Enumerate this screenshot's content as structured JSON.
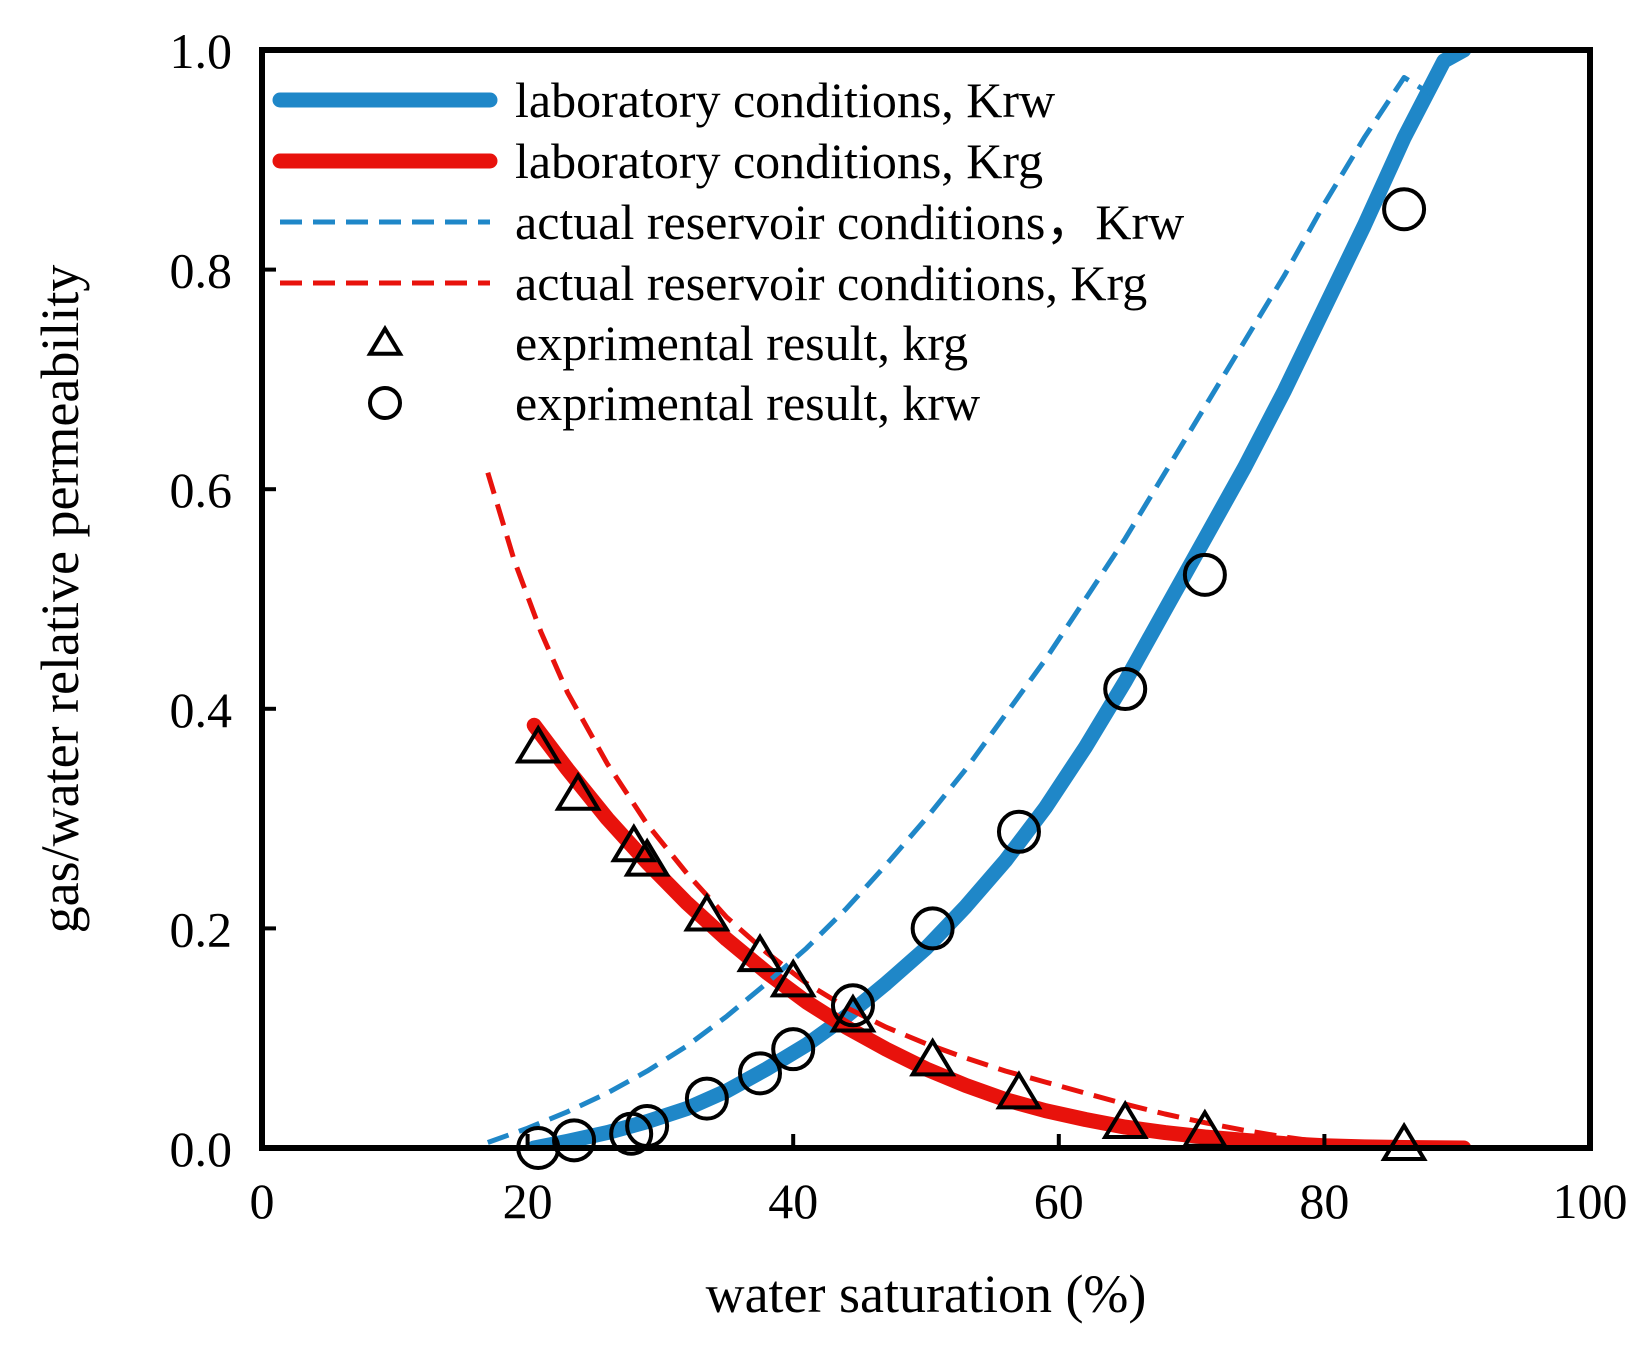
{
  "colors": {
    "blue": "#1f87c8",
    "red": "#e8120c",
    "black": "#000000"
  },
  "chart_data": {
    "type": "line",
    "title": "",
    "xlabel": "water saturation (%)",
    "ylabel": "gas/water relative permeability",
    "xlim": [
      0,
      100
    ],
    "ylim": [
      0,
      1.0
    ],
    "xticks": [
      0,
      20,
      40,
      60,
      80,
      100
    ],
    "yticks": [
      0.0,
      0.2,
      0.4,
      0.6,
      0.8,
      1.0
    ],
    "x_tick_labels": [
      "0",
      "20",
      "40",
      "60",
      "80",
      "100"
    ],
    "y_tick_labels": [
      "0.0",
      "0.2",
      "0.4",
      "0.6",
      "0.8",
      "1.0"
    ],
    "grid": false,
    "legend_position": "top-left",
    "series": [
      {
        "name": "laboratory conditions, Krw",
        "kind": "line",
        "style": "solid",
        "color": "#1f87c8",
        "x": [
          20.5,
          23,
          26,
          29,
          32,
          35,
          38,
          41,
          44,
          47,
          50,
          53,
          56,
          59,
          62,
          65,
          68,
          71,
          74,
          77,
          80,
          83,
          86,
          89,
          90.5
        ],
        "y": [
          0.0,
          0.006,
          0.014,
          0.024,
          0.036,
          0.052,
          0.072,
          0.094,
          0.12,
          0.15,
          0.182,
          0.22,
          0.262,
          0.31,
          0.365,
          0.425,
          0.49,
          0.555,
          0.62,
          0.69,
          0.765,
          0.84,
          0.92,
          0.99,
          1.0
        ]
      },
      {
        "name": "laboratory conditions, Krg",
        "kind": "line",
        "style": "solid",
        "color": "#e8120c",
        "x": [
          20.5,
          23,
          26,
          29,
          32,
          35,
          38,
          41,
          44,
          47,
          50,
          53,
          56,
          59,
          62,
          65,
          68,
          71,
          74,
          77,
          80,
          83,
          86,
          90.5
        ],
        "y": [
          0.385,
          0.345,
          0.3,
          0.26,
          0.223,
          0.19,
          0.16,
          0.133,
          0.11,
          0.09,
          0.072,
          0.057,
          0.044,
          0.034,
          0.026,
          0.019,
          0.014,
          0.01,
          0.007,
          0.004,
          0.002,
          0.001,
          0.0005,
          0.0
        ]
      },
      {
        "name": "actual reservoir conditions，Krw",
        "kind": "line",
        "style": "dashed",
        "color": "#1f87c8",
        "x": [
          17,
          20,
          23,
          26,
          29,
          32,
          35,
          38,
          41,
          44,
          47,
          50,
          53,
          56,
          59,
          62,
          65,
          68,
          71,
          74,
          77,
          80,
          83,
          86,
          88
        ],
        "y": [
          0.005,
          0.018,
          0.033,
          0.05,
          0.07,
          0.093,
          0.12,
          0.15,
          0.182,
          0.218,
          0.258,
          0.3,
          0.345,
          0.395,
          0.445,
          0.5,
          0.555,
          0.615,
          0.675,
          0.735,
          0.795,
          0.86,
          0.92,
          0.975,
          0.96
        ]
      },
      {
        "name": "actual reservoir conditions, Krg",
        "kind": "line",
        "style": "dashed",
        "color": "#e8120c",
        "x": [
          17,
          19,
          21,
          23,
          26,
          29,
          32,
          35,
          38,
          41,
          44,
          47,
          50,
          53,
          56,
          59,
          62,
          65,
          68,
          71,
          74,
          77,
          80,
          83,
          86,
          88
        ],
        "y": [
          0.615,
          0.535,
          0.47,
          0.415,
          0.35,
          0.295,
          0.25,
          0.21,
          0.178,
          0.15,
          0.128,
          0.11,
          0.095,
          0.082,
          0.07,
          0.06,
          0.05,
          0.04,
          0.031,
          0.023,
          0.016,
          0.01,
          0.005,
          0.002,
          0.0005,
          0.0
        ]
      },
      {
        "name": "exprimental result, krg",
        "kind": "scatter",
        "marker": "triangle",
        "color": "#000000",
        "x": [
          20.8,
          23.8,
          28.0,
          29.0,
          33.5,
          37.5,
          40.0,
          44.5,
          50.5,
          57.0,
          65.0,
          71.0,
          86.0
        ],
        "y": [
          0.365,
          0.322,
          0.275,
          0.262,
          0.212,
          0.175,
          0.152,
          0.12,
          0.08,
          0.05,
          0.023,
          0.015,
          0.003
        ]
      },
      {
        "name": "exprimental result, krw",
        "kind": "scatter",
        "marker": "circle",
        "color": "#000000",
        "x": [
          20.8,
          23.5,
          27.8,
          29.0,
          33.5,
          37.5,
          40.0,
          44.5,
          50.5,
          57.0,
          65.0,
          71.0,
          86.0
        ],
        "y": [
          0.0,
          0.007,
          0.013,
          0.02,
          0.045,
          0.068,
          0.09,
          0.13,
          0.2,
          0.288,
          0.418,
          0.522,
          0.855
        ]
      }
    ]
  }
}
